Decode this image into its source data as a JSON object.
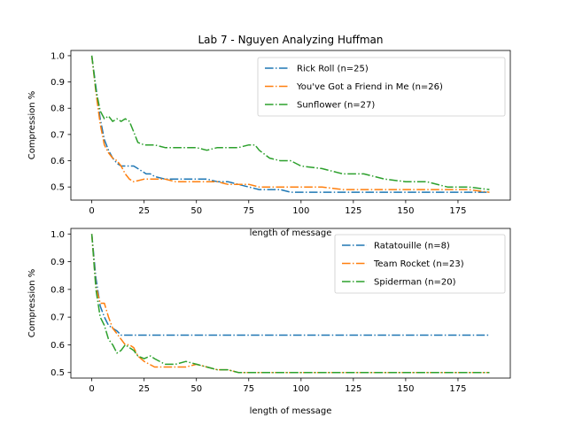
{
  "title": "Lab 7 - Nguyen Analyzing Huffman",
  "colors": {
    "blue": "#1f77b4",
    "orange": "#ff7f0e",
    "green": "#2ca02c"
  },
  "chart_data": [
    {
      "type": "line",
      "ylabel": "Compression %",
      "xlabel": "length of message",
      "xlim": [
        -10,
        200
      ],
      "ylim": [
        0.45,
        1.02
      ],
      "xticks": [
        0,
        25,
        50,
        75,
        100,
        125,
        150,
        175
      ],
      "yticks": [
        0.5,
        0.6,
        0.7,
        0.8,
        0.9,
        1.0
      ],
      "ytick_labels": [
        "0.5",
        "0.6",
        "0.7",
        "0.8",
        "0.9",
        "1.0"
      ],
      "legend_position": "upper-right",
      "series": [
        {
          "name": "Rick Roll (n=25)",
          "color": "#1f77b4",
          "points": [
            [
              0,
              1.0
            ],
            [
              2,
              0.88
            ],
            [
              4,
              0.76
            ],
            [
              6,
              0.68
            ],
            [
              8,
              0.64
            ],
            [
              10,
              0.61
            ],
            [
              12,
              0.59
            ],
            [
              14,
              0.58
            ],
            [
              16,
              0.58
            ],
            [
              18,
              0.58
            ],
            [
              20,
              0.58
            ],
            [
              22,
              0.57
            ],
            [
              24,
              0.56
            ],
            [
              26,
              0.55
            ],
            [
              28,
              0.55
            ],
            [
              30,
              0.54
            ],
            [
              35,
              0.53
            ],
            [
              40,
              0.53
            ],
            [
              45,
              0.53
            ],
            [
              50,
              0.53
            ],
            [
              55,
              0.53
            ],
            [
              60,
              0.52
            ],
            [
              65,
              0.52
            ],
            [
              70,
              0.51
            ],
            [
              75,
              0.5
            ],
            [
              80,
              0.49
            ],
            [
              85,
              0.49
            ],
            [
              90,
              0.49
            ],
            [
              95,
              0.48
            ],
            [
              100,
              0.48
            ],
            [
              110,
              0.48
            ],
            [
              120,
              0.48
            ],
            [
              130,
              0.48
            ],
            [
              140,
              0.48
            ],
            [
              150,
              0.48
            ],
            [
              160,
              0.48
            ],
            [
              170,
              0.48
            ],
            [
              180,
              0.48
            ],
            [
              190,
              0.48
            ]
          ]
        },
        {
          "name": "You've Got a Friend in Me (n=26)",
          "color": "#ff7f0e",
          "points": [
            [
              0,
              1.0
            ],
            [
              2,
              0.86
            ],
            [
              4,
              0.74
            ],
            [
              6,
              0.66
            ],
            [
              8,
              0.63
            ],
            [
              10,
              0.61
            ],
            [
              12,
              0.6
            ],
            [
              14,
              0.58
            ],
            [
              16,
              0.55
            ],
            [
              18,
              0.53
            ],
            [
              20,
              0.52
            ],
            [
              25,
              0.53
            ],
            [
              30,
              0.53
            ],
            [
              35,
              0.53
            ],
            [
              40,
              0.52
            ],
            [
              45,
              0.52
            ],
            [
              50,
              0.52
            ],
            [
              55,
              0.52
            ],
            [
              60,
              0.52
            ],
            [
              65,
              0.51
            ],
            [
              70,
              0.51
            ],
            [
              75,
              0.51
            ],
            [
              80,
              0.5
            ],
            [
              90,
              0.5
            ],
            [
              100,
              0.5
            ],
            [
              110,
              0.5
            ],
            [
              120,
              0.49
            ],
            [
              130,
              0.49
            ],
            [
              140,
              0.49
            ],
            [
              150,
              0.49
            ],
            [
              160,
              0.49
            ],
            [
              170,
              0.49
            ],
            [
              180,
              0.49
            ],
            [
              190,
              0.48
            ]
          ]
        },
        {
          "name": "Sunflower (n=27)",
          "color": "#2ca02c",
          "points": [
            [
              0,
              1.0
            ],
            [
              2,
              0.87
            ],
            [
              4,
              0.79
            ],
            [
              6,
              0.76
            ],
            [
              8,
              0.77
            ],
            [
              10,
              0.75
            ],
            [
              12,
              0.76
            ],
            [
              14,
              0.75
            ],
            [
              16,
              0.76
            ],
            [
              18,
              0.75
            ],
            [
              20,
              0.71
            ],
            [
              22,
              0.67
            ],
            [
              25,
              0.66
            ],
            [
              30,
              0.66
            ],
            [
              35,
              0.65
            ],
            [
              40,
              0.65
            ],
            [
              45,
              0.65
            ],
            [
              50,
              0.65
            ],
            [
              55,
              0.64
            ],
            [
              60,
              0.65
            ],
            [
              65,
              0.65
            ],
            [
              70,
              0.65
            ],
            [
              75,
              0.66
            ],
            [
              78,
              0.66
            ],
            [
              80,
              0.64
            ],
            [
              85,
              0.61
            ],
            [
              90,
              0.6
            ],
            [
              95,
              0.6
            ],
            [
              100,
              0.58
            ],
            [
              110,
              0.57
            ],
            [
              120,
              0.55
            ],
            [
              130,
              0.55
            ],
            [
              140,
              0.53
            ],
            [
              150,
              0.52
            ],
            [
              160,
              0.52
            ],
            [
              170,
              0.5
            ],
            [
              180,
              0.5
            ],
            [
              190,
              0.49
            ]
          ]
        }
      ]
    },
    {
      "type": "line",
      "ylabel": "Compression %",
      "xlabel": "length of message",
      "xlim": [
        -10,
        200
      ],
      "ylim": [
        0.48,
        1.02
      ],
      "xticks": [
        0,
        25,
        50,
        75,
        100,
        125,
        150,
        175
      ],
      "yticks": [
        0.5,
        0.6,
        0.7,
        0.8,
        0.9,
        1.0
      ],
      "ytick_labels": [
        "0.5",
        "0.6",
        "0.7",
        "0.8",
        "0.9",
        "1.0"
      ],
      "legend_position": "upper-right",
      "series": [
        {
          "name": "Ratatouille (n=8)",
          "color": "#1f77b4",
          "points": [
            [
              0,
              1.0
            ],
            [
              2,
              0.84
            ],
            [
              4,
              0.74
            ],
            [
              6,
              0.7
            ],
            [
              8,
              0.67
            ],
            [
              10,
              0.66
            ],
            [
              12,
              0.65
            ],
            [
              14,
              0.635
            ],
            [
              16,
              0.635
            ],
            [
              20,
              0.635
            ],
            [
              30,
              0.635
            ],
            [
              50,
              0.635
            ],
            [
              75,
              0.635
            ],
            [
              100,
              0.635
            ],
            [
              125,
              0.635
            ],
            [
              150,
              0.635
            ],
            [
              175,
              0.635
            ],
            [
              190,
              0.635
            ]
          ]
        },
        {
          "name": "Team Rocket (n=23)",
          "color": "#ff7f0e",
          "points": [
            [
              0,
              1.0
            ],
            [
              2,
              0.81
            ],
            [
              4,
              0.75
            ],
            [
              6,
              0.75
            ],
            [
              8,
              0.7
            ],
            [
              10,
              0.66
            ],
            [
              12,
              0.64
            ],
            [
              14,
              0.62
            ],
            [
              16,
              0.6
            ],
            [
              18,
              0.6
            ],
            [
              20,
              0.59
            ],
            [
              22,
              0.56
            ],
            [
              25,
              0.54
            ],
            [
              30,
              0.52
            ],
            [
              35,
              0.52
            ],
            [
              40,
              0.52
            ],
            [
              45,
              0.52
            ],
            [
              50,
              0.53
            ],
            [
              55,
              0.52
            ],
            [
              60,
              0.51
            ],
            [
              65,
              0.51
            ],
            [
              70,
              0.5
            ],
            [
              75,
              0.5
            ],
            [
              100,
              0.5
            ],
            [
              125,
              0.5
            ],
            [
              150,
              0.5
            ],
            [
              175,
              0.5
            ],
            [
              190,
              0.5
            ]
          ]
        },
        {
          "name": "Spiderman (n=20)",
          "color": "#2ca02c",
          "points": [
            [
              0,
              1.0
            ],
            [
              2,
              0.8
            ],
            [
              4,
              0.7
            ],
            [
              6,
              0.67
            ],
            [
              8,
              0.62
            ],
            [
              10,
              0.6
            ],
            [
              12,
              0.57
            ],
            [
              14,
              0.58
            ],
            [
              16,
              0.6
            ],
            [
              18,
              0.59
            ],
            [
              20,
              0.58
            ],
            [
              22,
              0.56
            ],
            [
              25,
              0.55
            ],
            [
              28,
              0.56
            ],
            [
              30,
              0.55
            ],
            [
              35,
              0.53
            ],
            [
              40,
              0.53
            ],
            [
              45,
              0.54
            ],
            [
              50,
              0.53
            ],
            [
              55,
              0.52
            ],
            [
              60,
              0.51
            ],
            [
              65,
              0.51
            ],
            [
              70,
              0.5
            ],
            [
              75,
              0.5
            ],
            [
              100,
              0.5
            ],
            [
              125,
              0.5
            ],
            [
              150,
              0.5
            ],
            [
              175,
              0.5
            ],
            [
              190,
              0.5
            ]
          ]
        }
      ]
    }
  ]
}
